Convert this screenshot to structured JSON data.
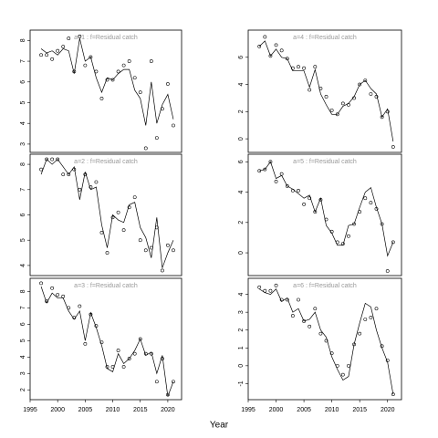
{
  "xlabel": "Year",
  "chart_data": [
    {
      "type": "line",
      "title": "a=1 : f=Residual catch",
      "x": [
        1997,
        1998,
        1999,
        2000,
        2001,
        2002,
        2003,
        2004,
        2005,
        2006,
        2007,
        2008,
        2009,
        2010,
        2011,
        2012,
        2013,
        2014,
        2015,
        2016,
        2017,
        2018,
        2019,
        2020,
        2021
      ],
      "series": [
        {
          "marker": "circle",
          "values": [
            7.3,
            7.3,
            7.1,
            7.5,
            7.7,
            8.1,
            6.5,
            8.2,
            6.8,
            7.2,
            6.5,
            5.2,
            6.1,
            6.1,
            6.5,
            6.8,
            7.0,
            6.2,
            5.5,
            2.8,
            7.0,
            3.3,
            4.7,
            5.9,
            3.9
          ]
        },
        {
          "marker": "line",
          "values": [
            7.6,
            7.4,
            7.5,
            7.3,
            7.6,
            7.5,
            6.4,
            8.1,
            7.0,
            7.2,
            6.2,
            5.5,
            6.2,
            6.1,
            6.4,
            6.6,
            6.6,
            5.6,
            5.2,
            3.9,
            6.0,
            4.0,
            4.9,
            5.4,
            4.2
          ]
        }
      ],
      "xlim": [
        1995,
        2022.5
      ],
      "ylim": [
        2.6,
        8.5
      ],
      "yticks": [
        3,
        4,
        5,
        6,
        7,
        8
      ]
    },
    {
      "type": "line",
      "title": "a=2 : f=Residual catch",
      "x": [
        1997,
        1998,
        1999,
        2000,
        2001,
        2002,
        2003,
        2004,
        2005,
        2006,
        2007,
        2008,
        2009,
        2010,
        2011,
        2012,
        2013,
        2014,
        2015,
        2016,
        2017,
        2018,
        2019,
        2020,
        2021
      ],
      "series": [
        {
          "marker": "circle",
          "values": [
            7.8,
            8.2,
            8.2,
            8.2,
            7.6,
            7.6,
            7.8,
            7.0,
            7.6,
            7.1,
            7.3,
            5.3,
            4.5,
            5.9,
            6.1,
            5.4,
            6.3,
            6.7,
            5.0,
            4.6,
            4.7,
            5.5,
            3.8,
            4.8,
            4.6
          ]
        },
        {
          "marker": "line",
          "values": [
            7.6,
            8.2,
            8.0,
            8.2,
            7.9,
            7.6,
            7.9,
            6.6,
            7.7,
            7.0,
            7.1,
            5.6,
            4.7,
            6.0,
            5.8,
            5.7,
            6.4,
            6.5,
            5.5,
            5.1,
            4.3,
            5.9,
            3.9,
            4.5,
            5.0
          ]
        }
      ],
      "xlim": [
        1995,
        2022.5
      ],
      "ylim": [
        3.6,
        8.4
      ],
      "yticks": [
        4,
        5,
        6,
        7,
        8
      ]
    },
    {
      "type": "line",
      "title": "a=3 : f=Residual catch",
      "x": [
        1997,
        1998,
        1999,
        2000,
        2001,
        2002,
        2003,
        2004,
        2005,
        2006,
        2007,
        2008,
        2009,
        2010,
        2011,
        2012,
        2013,
        2014,
        2015,
        2016,
        2017,
        2018,
        2019,
        2020,
        2021
      ],
      "series": [
        {
          "marker": "circle",
          "values": [
            8.5,
            7.4,
            8.2,
            7.8,
            7.7,
            7.0,
            6.4,
            7.1,
            4.8,
            6.6,
            5.9,
            4.9,
            3.4,
            3.4,
            4.4,
            3.4,
            3.9,
            4.2,
            5.1,
            4.2,
            4.2,
            2.5,
            3.9,
            1.7,
            2.5
          ]
        },
        {
          "marker": "line",
          "values": [
            8.3,
            7.3,
            7.9,
            7.6,
            7.6,
            6.8,
            6.3,
            6.8,
            5.0,
            6.7,
            5.8,
            4.7,
            3.3,
            3.1,
            4.2,
            3.6,
            3.9,
            4.4,
            5.1,
            4.1,
            4.3,
            3.0,
            4.1,
            1.6,
            2.5
          ]
        }
      ],
      "xlim": [
        1995,
        2022.5
      ],
      "ylim": [
        1.4,
        8.8
      ],
      "yticks": [
        2,
        3,
        4,
        5,
        6,
        7,
        8
      ],
      "xticks": [
        1995,
        2000,
        2005,
        2010,
        2015,
        2020
      ]
    },
    {
      "type": "line",
      "title": "a=4 : f=Residual catch",
      "x": [
        1997,
        1998,
        1999,
        2000,
        2001,
        2002,
        2003,
        2004,
        2005,
        2006,
        2007,
        2008,
        2009,
        2010,
        2011,
        2012,
        2013,
        2014,
        2015,
        2016,
        2017,
        2018,
        2019,
        2020,
        2021
      ],
      "series": [
        {
          "marker": "circle",
          "values": [
            6.8,
            7.5,
            6.1,
            6.9,
            6.5,
            5.9,
            5.2,
            5.3,
            5.2,
            3.6,
            5.3,
            3.7,
            3.1,
            2.1,
            1.8,
            2.6,
            2.5,
            3.0,
            4.0,
            4.3,
            3.3,
            3.1,
            1.6,
            2.0,
            -0.6
          ]
        },
        {
          "marker": "line",
          "values": [
            6.8,
            7.2,
            6.1,
            6.6,
            6.0,
            5.9,
            5.0,
            5.0,
            5.0,
            3.8,
            5.1,
            3.3,
            2.5,
            1.8,
            1.8,
            2.4,
            2.6,
            3.1,
            4.0,
            4.3,
            3.7,
            3.3,
            1.6,
            2.2,
            -0.2
          ]
        }
      ],
      "xlim": [
        1995,
        2022.5
      ],
      "ylim": [
        -1,
        8
      ],
      "yticks": [
        0,
        2,
        4,
        6
      ]
    },
    {
      "type": "line",
      "title": "a=5 : f=Residual catch",
      "x": [
        1997,
        1998,
        1999,
        2000,
        2001,
        2002,
        2003,
        2004,
        2005,
        2006,
        2007,
        2008,
        2009,
        2010,
        2011,
        2012,
        2013,
        2014,
        2015,
        2016,
        2017,
        2018,
        2019,
        2020,
        2021
      ],
      "series": [
        {
          "marker": "circle",
          "values": [
            5.4,
            5.5,
            6.0,
            4.7,
            5.2,
            4.4,
            4.1,
            4.1,
            3.2,
            3.6,
            2.7,
            3.5,
            2.2,
            1.4,
            0.7,
            0.6,
            1.1,
            1.9,
            2.7,
            3.6,
            3.3,
            2.9,
            1.9,
            -1.2,
            0.7
          ]
        },
        {
          "marker": "line",
          "values": [
            5.4,
            5.5,
            6.0,
            4.9,
            5.1,
            4.4,
            4.2,
            3.9,
            3.6,
            3.8,
            2.7,
            3.6,
            1.8,
            1.3,
            0.5,
            0.5,
            1.8,
            1.9,
            3.0,
            4.0,
            4.3,
            3.0,
            1.9,
            -0.2,
            0.7
          ]
        }
      ],
      "xlim": [
        1995,
        2022.5
      ],
      "ylim": [
        -1.5,
        6.5
      ],
      "yticks": [
        0,
        2,
        4,
        6
      ]
    },
    {
      "type": "line",
      "title": "a=6 : f=Residual catch",
      "x": [
        1997,
        1998,
        1999,
        2000,
        2001,
        2002,
        2003,
        2004,
        2005,
        2006,
        2007,
        2008,
        2009,
        2010,
        2011,
        2012,
        2013,
        2014,
        2015,
        2016,
        2017,
        2018,
        2019,
        2020,
        2021
      ],
      "series": [
        {
          "marker": "circle",
          "values": [
            4.4,
            4.2,
            4.2,
            4.5,
            3.7,
            3.7,
            2.8,
            3.7,
            2.5,
            2.2,
            3.2,
            1.8,
            1.4,
            0.7,
            0.0,
            -0.5,
            0.0,
            1.2,
            1.8,
            2.6,
            2.7,
            3.2,
            1.1,
            0.3,
            -1.6
          ]
        },
        {
          "marker": "line",
          "values": [
            4.3,
            4.1,
            4.0,
            4.3,
            3.6,
            3.8,
            3.0,
            3.2,
            2.5,
            2.6,
            3.0,
            2.0,
            1.6,
            0.5,
            -0.2,
            -0.8,
            -0.6,
            1.2,
            2.4,
            3.5,
            3.3,
            2.0,
            1.0,
            0.2,
            -1.6
          ]
        }
      ],
      "xlim": [
        1995,
        2022.5
      ],
      "ylim": [
        -1.9,
        4.9
      ],
      "yticks": [
        -1,
        0,
        1,
        2,
        3,
        4
      ],
      "xticks": [
        1995,
        2000,
        2005,
        2010,
        2015,
        2020
      ]
    }
  ]
}
